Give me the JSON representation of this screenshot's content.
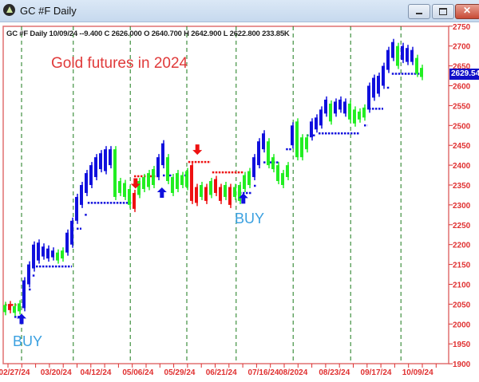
{
  "window": {
    "title": "GC #F  Daily",
    "minimize": "minimize",
    "maximize": "maximize",
    "close": "close"
  },
  "info_line": "GC #F  Daily 10/09/24 --9.400 C 2626.000 O 2640.700 H 2642.900 L 2622.800 233.85K",
  "annotation_title": "Gold futures in 2024",
  "buy_labels": [
    "BUY",
    "BUY"
  ],
  "last_price_tag": "2629.54",
  "colors": {
    "up_trend": "#1010dd",
    "neutral": "#22ee22",
    "down_trend": "#ee1111",
    "axis": "#e03030",
    "grid": "#1a7a1a",
    "price_tag": "#1010c8"
  },
  "chart_data": {
    "type": "bar",
    "subtype": "ohlc-range-bars",
    "ylim": [
      1900,
      2750
    ],
    "yticks": [
      1900,
      1950,
      2000,
      2050,
      2100,
      2150,
      2200,
      2250,
      2300,
      2350,
      2400,
      2450,
      2500,
      2550,
      2600,
      2650,
      2700,
      2750
    ],
    "y_axis_side": "right",
    "grid": "vertical dashed",
    "xtick_labels": [
      {
        "label": "02/27/24",
        "bar": 2
      },
      {
        "label": "03/20/24",
        "bar": 10.7
      },
      {
        "label": "04/12/24",
        "bar": 19
      },
      {
        "label": "05/06/24",
        "bar": 27.8
      },
      {
        "label": "05/29/24",
        "bar": 36.5
      },
      {
        "label": "06/21/24",
        "bar": 45.2
      },
      {
        "label": "07/16/24",
        "bar": 54
      },
      {
        "label": "08/2024",
        "bar": 60.2
      },
      {
        "label": "08/23/24",
        "bar": 68.8
      },
      {
        "label": "09/17/24",
        "bar": 77.5
      },
      {
        "label": "10/09/24",
        "bar": 86.2
      }
    ],
    "gridline_bars": [
      3.5,
      14.3,
      26.2,
      38,
      48.3,
      60.2,
      72.2,
      82.7
    ],
    "bars": [
      [
        2030,
        2048,
        "g"
      ],
      [
        2035,
        2050,
        "r"
      ],
      [
        2028,
        2045,
        "g"
      ],
      [
        2032,
        2052,
        "g"
      ],
      [
        2040,
        2110,
        "b"
      ],
      [
        2100,
        2150,
        "b"
      ],
      [
        2140,
        2200,
        "b"
      ],
      [
        2160,
        2205,
        "b"
      ],
      [
        2170,
        2195,
        "b"
      ],
      [
        2165,
        2190,
        "b"
      ],
      [
        2168,
        2185,
        "b"
      ],
      [
        2160,
        2180,
        "g"
      ],
      [
        2165,
        2185,
        "g"
      ],
      [
        2180,
        2230,
        "b"
      ],
      [
        2200,
        2260,
        "b"
      ],
      [
        2260,
        2320,
        "b"
      ],
      [
        2300,
        2350,
        "b"
      ],
      [
        2330,
        2380,
        "b"
      ],
      [
        2350,
        2400,
        "b"
      ],
      [
        2370,
        2420,
        "b"
      ],
      [
        2390,
        2430,
        "b"
      ],
      [
        2385,
        2440,
        "b"
      ],
      [
        2400,
        2440,
        "b"
      ],
      [
        2320,
        2440,
        "g"
      ],
      [
        2330,
        2360,
        "g"
      ],
      [
        2320,
        2355,
        "g"
      ],
      [
        2300,
        2340,
        "g"
      ],
      [
        2290,
        2330,
        "r"
      ],
      [
        2325,
        2360,
        "g"
      ],
      [
        2340,
        2370,
        "g"
      ],
      [
        2345,
        2380,
        "g"
      ],
      [
        2350,
        2390,
        "g"
      ],
      [
        2370,
        2420,
        "b"
      ],
      [
        2400,
        2455,
        "b"
      ],
      [
        2360,
        2420,
        "g"
      ],
      [
        2330,
        2370,
        "g"
      ],
      [
        2340,
        2380,
        "g"
      ],
      [
        2350,
        2375,
        "g"
      ],
      [
        2345,
        2385,
        "g"
      ],
      [
        2310,
        2400,
        "r"
      ],
      [
        2305,
        2345,
        "r"
      ],
      [
        2320,
        2350,
        "g"
      ],
      [
        2310,
        2345,
        "r"
      ],
      [
        2325,
        2360,
        "g"
      ],
      [
        2330,
        2365,
        "r"
      ],
      [
        2310,
        2345,
        "r"
      ],
      [
        2320,
        2350,
        "g"
      ],
      [
        2300,
        2345,
        "r"
      ],
      [
        2320,
        2345,
        "g"
      ],
      [
        2310,
        2350,
        "g"
      ],
      [
        2340,
        2375,
        "g"
      ],
      [
        2350,
        2385,
        "g"
      ],
      [
        2370,
        2420,
        "b"
      ],
      [
        2400,
        2460,
        "b"
      ],
      [
        2440,
        2480,
        "b"
      ],
      [
        2400,
        2460,
        "g"
      ],
      [
        2390,
        2420,
        "g"
      ],
      [
        2360,
        2400,
        "g"
      ],
      [
        2350,
        2380,
        "g"
      ],
      [
        2370,
        2400,
        "g"
      ],
      [
        2450,
        2500,
        "b"
      ],
      [
        2420,
        2510,
        "g"
      ],
      [
        2420,
        2470,
        "g"
      ],
      [
        2440,
        2470,
        "g"
      ],
      [
        2470,
        2510,
        "b"
      ],
      [
        2490,
        2520,
        "b"
      ],
      [
        2500,
        2540,
        "b"
      ],
      [
        2530,
        2565,
        "b"
      ],
      [
        2510,
        2555,
        "g"
      ],
      [
        2530,
        2560,
        "b"
      ],
      [
        2540,
        2565,
        "b"
      ],
      [
        2530,
        2560,
        "b"
      ],
      [
        2515,
        2555,
        "g"
      ],
      [
        2505,
        2540,
        "g"
      ],
      [
        2515,
        2535,
        "g"
      ],
      [
        2520,
        2545,
        "g"
      ],
      [
        2540,
        2600,
        "b"
      ],
      [
        2570,
        2620,
        "b"
      ],
      [
        2580,
        2625,
        "b"
      ],
      [
        2600,
        2650,
        "b"
      ],
      [
        2640,
        2690,
        "b"
      ],
      [
        2670,
        2710,
        "b"
      ],
      [
        2650,
        2700,
        "g"
      ],
      [
        2665,
        2700,
        "b"
      ],
      [
        2660,
        2695,
        "b"
      ],
      [
        2660,
        2690,
        "b"
      ],
      [
        2630,
        2670,
        "g"
      ],
      [
        2622,
        2645,
        "g"
      ]
    ],
    "stops": [
      [
        0,
        3,
        2048,
        "r"
      ],
      [
        2,
        4,
        2018,
        "b"
      ],
      [
        5,
        5.5,
        2087,
        "b"
      ],
      [
        5.8,
        6.3,
        2122,
        "b"
      ],
      [
        6.5,
        14,
        2145,
        "b"
      ],
      [
        15,
        16,
        2240,
        "b"
      ],
      [
        16.7,
        17.3,
        2275,
        "b"
      ],
      [
        17.3,
        26.5,
        2305,
        "b"
      ],
      [
        27,
        32.3,
        2372,
        "r"
      ],
      [
        33,
        35,
        2374,
        "b"
      ],
      [
        37.5,
        38.3,
        2374,
        "b"
      ],
      [
        38.3,
        43,
        2408,
        "r"
      ],
      [
        43.3,
        49.8,
        2382,
        "r"
      ],
      [
        49,
        51.5,
        2330,
        "b"
      ],
      [
        52,
        52.5,
        2348,
        "b"
      ],
      [
        54,
        57.3,
        2407,
        "b"
      ],
      [
        58.7,
        60,
        2440,
        "b"
      ],
      [
        63,
        64.8,
        2475,
        "b"
      ],
      [
        65.5,
        74,
        2480,
        "b"
      ],
      [
        75,
        75.7,
        2500,
        "b"
      ],
      [
        76,
        79,
        2542,
        "b"
      ],
      [
        79.8,
        80.3,
        2595,
        "b"
      ],
      [
        80.8,
        87.3,
        2630,
        "b"
      ]
    ],
    "arrows": [
      {
        "bar": 3.5,
        "price": 2012,
        "dir": "up"
      },
      {
        "bar": 27.3,
        "price": 2355,
        "dir": "down"
      },
      {
        "bar": 32.8,
        "price": 2330,
        "dir": "up"
      },
      {
        "bar": 40.2,
        "price": 2440,
        "dir": "down"
      },
      {
        "bar": 49.8,
        "price": 2315,
        "dir": "up"
      }
    ],
    "last_price": 2629.54
  }
}
